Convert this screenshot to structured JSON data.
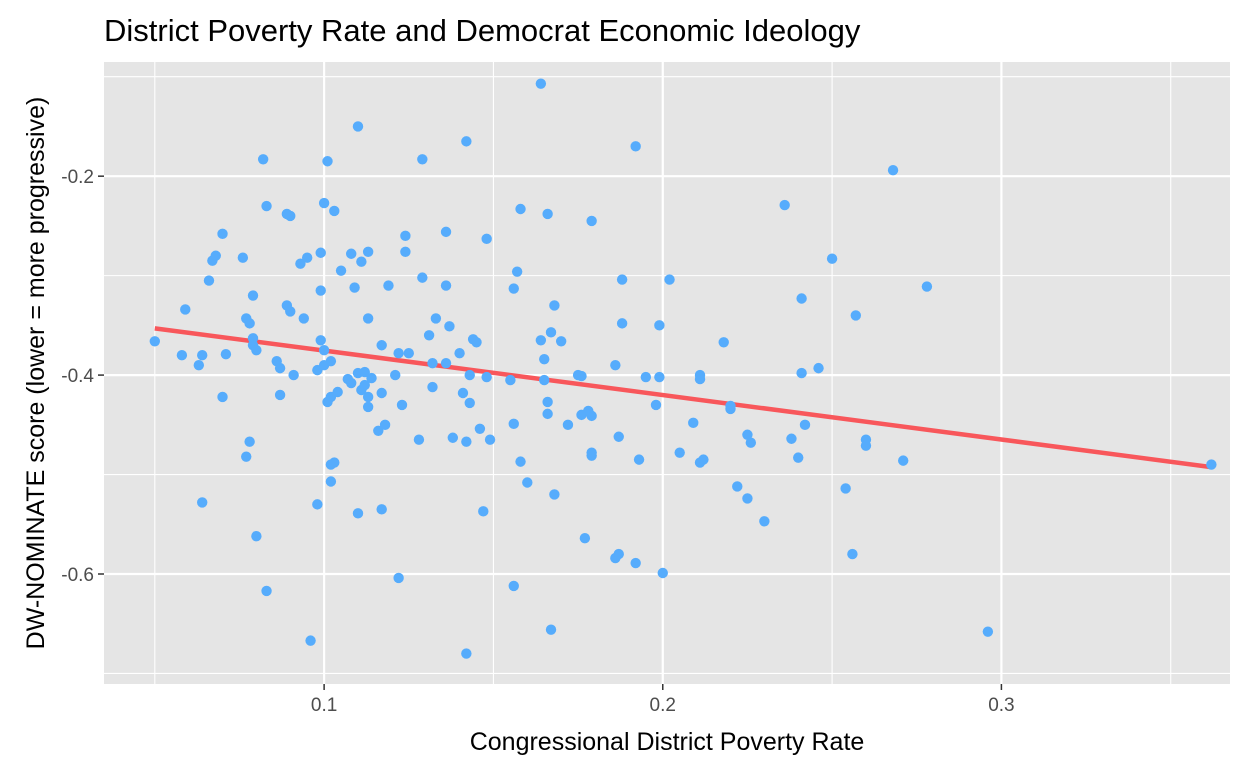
{
  "chart_data": {
    "type": "scatter",
    "title": "District Poverty Rate and Democrat Economic Ideology",
    "xlabel": "Congressional District Poverty Rate",
    "ylabel": "DW-NOMINATE score (lower = more progressive)",
    "xlim": [
      0.035,
      0.3675
    ],
    "ylim": [
      -0.7106,
      -0.0852
    ],
    "x_ticks": [
      0.1,
      0.2,
      0.3
    ],
    "x_tick_labels": [
      "0.1",
      "0.2",
      "0.3"
    ],
    "x_minor": [
      0.05,
      0.15,
      0.25,
      0.35
    ],
    "y_ticks": [
      -0.6,
      -0.4,
      -0.2
    ],
    "y_tick_labels": [
      "-0.6",
      "-0.4",
      "-0.2"
    ],
    "y_minor": [
      -0.7,
      -0.5,
      -0.3,
      -0.1
    ],
    "grid": true,
    "colors": {
      "points": "#56acfc",
      "trend": "#f8575b",
      "panel": "#e5e5e5",
      "grid": "#ffffff"
    },
    "trend_line": {
      "x": [
        0.05,
        0.362
      ],
      "y": [
        -0.353,
        -0.4925
      ]
    },
    "points": [
      [
        0.05,
        -0.366
      ],
      [
        0.058,
        -0.38
      ],
      [
        0.059,
        -0.334
      ],
      [
        0.063,
        -0.39
      ],
      [
        0.064,
        -0.38
      ],
      [
        0.064,
        -0.528
      ],
      [
        0.066,
        -0.305
      ],
      [
        0.067,
        -0.285
      ],
      [
        0.068,
        -0.28
      ],
      [
        0.07,
        -0.258
      ],
      [
        0.07,
        -0.422
      ],
      [
        0.071,
        -0.379
      ],
      [
        0.076,
        -0.282
      ],
      [
        0.077,
        -0.343
      ],
      [
        0.077,
        -0.482
      ],
      [
        0.078,
        -0.348
      ],
      [
        0.078,
        -0.467
      ],
      [
        0.079,
        -0.32
      ],
      [
        0.079,
        -0.363
      ],
      [
        0.079,
        -0.37
      ],
      [
        0.08,
        -0.375
      ],
      [
        0.08,
        -0.562
      ],
      [
        0.082,
        -0.183
      ],
      [
        0.083,
        -0.23
      ],
      [
        0.083,
        -0.617
      ],
      [
        0.086,
        -0.386
      ],
      [
        0.087,
        -0.42
      ],
      [
        0.087,
        -0.393
      ],
      [
        0.089,
        -0.238
      ],
      [
        0.089,
        -0.33
      ],
      [
        0.09,
        -0.24
      ],
      [
        0.09,
        -0.336
      ],
      [
        0.091,
        -0.4
      ],
      [
        0.093,
        -0.288
      ],
      [
        0.094,
        -0.343
      ],
      [
        0.095,
        -0.282
      ],
      [
        0.096,
        -0.667
      ],
      [
        0.098,
        -0.395
      ],
      [
        0.098,
        -0.53
      ],
      [
        0.099,
        -0.315
      ],
      [
        0.099,
        -0.277
      ],
      [
        0.099,
        -0.365
      ],
      [
        0.1,
        -0.227
      ],
      [
        0.1,
        -0.39
      ],
      [
        0.1,
        -0.375
      ],
      [
        0.101,
        -0.427
      ],
      [
        0.101,
        -0.185
      ],
      [
        0.102,
        -0.422
      ],
      [
        0.102,
        -0.386
      ],
      [
        0.102,
        -0.507
      ],
      [
        0.102,
        -0.49
      ],
      [
        0.103,
        -0.488
      ],
      [
        0.103,
        -0.235
      ],
      [
        0.104,
        -0.417
      ],
      [
        0.105,
        -0.295
      ],
      [
        0.107,
        -0.404
      ],
      [
        0.108,
        -0.278
      ],
      [
        0.108,
        -0.408
      ],
      [
        0.109,
        -0.312
      ],
      [
        0.11,
        -0.398
      ],
      [
        0.11,
        -0.539
      ],
      [
        0.11,
        -0.15
      ],
      [
        0.111,
        -0.286
      ],
      [
        0.111,
        -0.415
      ],
      [
        0.112,
        -0.397
      ],
      [
        0.112,
        -0.41
      ],
      [
        0.113,
        -0.343
      ],
      [
        0.113,
        -0.432
      ],
      [
        0.113,
        -0.422
      ],
      [
        0.113,
        -0.276
      ],
      [
        0.114,
        -0.403
      ],
      [
        0.116,
        -0.456
      ],
      [
        0.117,
        -0.37
      ],
      [
        0.117,
        -0.418
      ],
      [
        0.117,
        -0.535
      ],
      [
        0.118,
        -0.45
      ],
      [
        0.119,
        -0.31
      ],
      [
        0.121,
        -0.4
      ],
      [
        0.122,
        -0.378
      ],
      [
        0.122,
        -0.604
      ],
      [
        0.123,
        -0.43
      ],
      [
        0.124,
        -0.26
      ],
      [
        0.124,
        -0.276
      ],
      [
        0.125,
        -0.378
      ],
      [
        0.128,
        -0.465
      ],
      [
        0.129,
        -0.302
      ],
      [
        0.129,
        -0.183
      ],
      [
        0.131,
        -0.36
      ],
      [
        0.132,
        -0.412
      ],
      [
        0.132,
        -0.388
      ],
      [
        0.133,
        -0.343
      ],
      [
        0.136,
        -0.256
      ],
      [
        0.136,
        -0.31
      ],
      [
        0.136,
        -0.388
      ],
      [
        0.137,
        -0.351
      ],
      [
        0.138,
        -0.463
      ],
      [
        0.14,
        -0.378
      ],
      [
        0.141,
        -0.418
      ],
      [
        0.142,
        -0.467
      ],
      [
        0.142,
        -0.68
      ],
      [
        0.142,
        -0.165
      ],
      [
        0.143,
        -0.4
      ],
      [
        0.143,
        -0.428
      ],
      [
        0.144,
        -0.364
      ],
      [
        0.145,
        -0.367
      ],
      [
        0.146,
        -0.454
      ],
      [
        0.147,
        -0.537
      ],
      [
        0.148,
        -0.402
      ],
      [
        0.148,
        -0.263
      ],
      [
        0.149,
        -0.465
      ],
      [
        0.155,
        -0.405
      ],
      [
        0.156,
        -0.449
      ],
      [
        0.156,
        -0.612
      ],
      [
        0.156,
        -0.313
      ],
      [
        0.157,
        -0.296
      ],
      [
        0.158,
        -0.487
      ],
      [
        0.158,
        -0.233
      ],
      [
        0.16,
        -0.508
      ],
      [
        0.164,
        -0.365
      ],
      [
        0.164,
        -0.107
      ],
      [
        0.165,
        -0.384
      ],
      [
        0.165,
        -0.405
      ],
      [
        0.166,
        -0.427
      ],
      [
        0.166,
        -0.439
      ],
      [
        0.166,
        -0.238
      ],
      [
        0.167,
        -0.357
      ],
      [
        0.167,
        -0.656
      ],
      [
        0.168,
        -0.52
      ],
      [
        0.168,
        -0.33
      ],
      [
        0.17,
        -0.366
      ],
      [
        0.172,
        -0.45
      ],
      [
        0.175,
        -0.4
      ],
      [
        0.176,
        -0.401
      ],
      [
        0.176,
        -0.44
      ],
      [
        0.177,
        -0.564
      ],
      [
        0.178,
        -0.436
      ],
      [
        0.179,
        -0.441
      ],
      [
        0.179,
        -0.245
      ],
      [
        0.179,
        -0.481
      ],
      [
        0.179,
        -0.478
      ],
      [
        0.186,
        -0.584
      ],
      [
        0.186,
        -0.39
      ],
      [
        0.187,
        -0.58
      ],
      [
        0.187,
        -0.462
      ],
      [
        0.188,
        -0.348
      ],
      [
        0.188,
        -0.304
      ],
      [
        0.192,
        -0.589
      ],
      [
        0.192,
        -0.17
      ],
      [
        0.193,
        -0.485
      ],
      [
        0.195,
        -0.402
      ],
      [
        0.198,
        -0.43
      ],
      [
        0.199,
        -0.35
      ],
      [
        0.199,
        -0.402
      ],
      [
        0.2,
        -0.599
      ],
      [
        0.202,
        -0.304
      ],
      [
        0.205,
        -0.478
      ],
      [
        0.209,
        -0.448
      ],
      [
        0.211,
        -0.404
      ],
      [
        0.211,
        -0.4
      ],
      [
        0.211,
        -0.488
      ],
      [
        0.212,
        -0.485
      ],
      [
        0.218,
        -0.367
      ],
      [
        0.22,
        -0.434
      ],
      [
        0.22,
        -0.431
      ],
      [
        0.222,
        -0.512
      ],
      [
        0.225,
        -0.46
      ],
      [
        0.225,
        -0.524
      ],
      [
        0.226,
        -0.468
      ],
      [
        0.23,
        -0.547
      ],
      [
        0.236,
        -0.229
      ],
      [
        0.238,
        -0.464
      ],
      [
        0.24,
        -0.483
      ],
      [
        0.241,
        -0.398
      ],
      [
        0.241,
        -0.323
      ],
      [
        0.242,
        -0.45
      ],
      [
        0.246,
        -0.393
      ],
      [
        0.25,
        -0.283
      ],
      [
        0.254,
        -0.514
      ],
      [
        0.256,
        -0.58
      ],
      [
        0.257,
        -0.34
      ],
      [
        0.26,
        -0.465
      ],
      [
        0.26,
        -0.471
      ],
      [
        0.268,
        -0.194
      ],
      [
        0.271,
        -0.486
      ],
      [
        0.278,
        -0.311
      ],
      [
        0.296,
        -0.658
      ],
      [
        0.362,
        -0.49
      ]
    ]
  }
}
